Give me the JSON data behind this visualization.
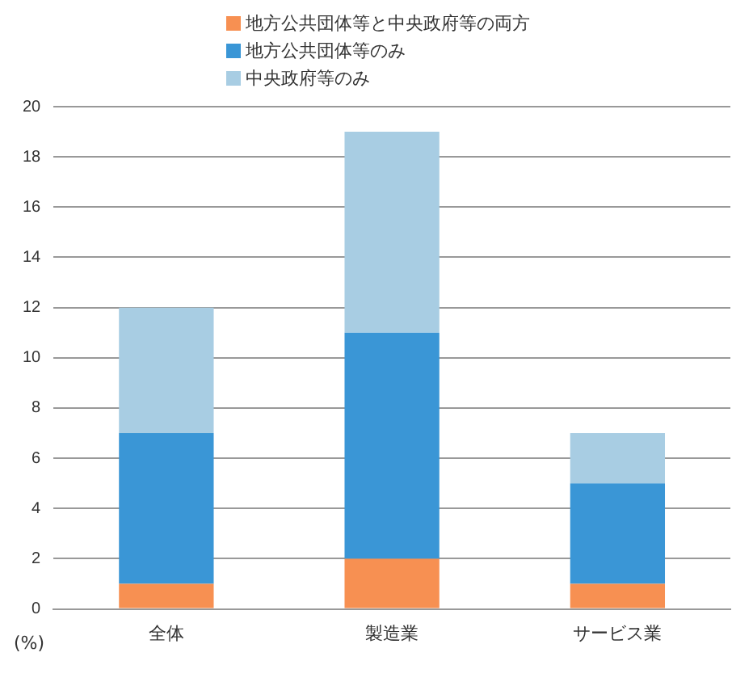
{
  "chart_data": {
    "type": "bar",
    "stacked": true,
    "ylabel": "(%)",
    "categories": [
      "全体",
      "製造業",
      "サービス業"
    ],
    "series": [
      {
        "name": "地方公共団体等と中央政府等の両方",
        "color": "#f79052",
        "values": [
          1,
          2,
          1
        ]
      },
      {
        "name": "地方公共団体等のみ",
        "color": "#3a96d6",
        "values": [
          6,
          9,
          4
        ]
      },
      {
        "name": "中央政府等のみ",
        "color": "#a8cde3",
        "values": [
          5,
          8,
          2
        ]
      }
    ],
    "ylim": [
      0,
      20
    ],
    "yticks": [
      0,
      2,
      4,
      6,
      8,
      10,
      12,
      14,
      16,
      18,
      20
    ],
    "grid": "y",
    "legend": "top"
  }
}
